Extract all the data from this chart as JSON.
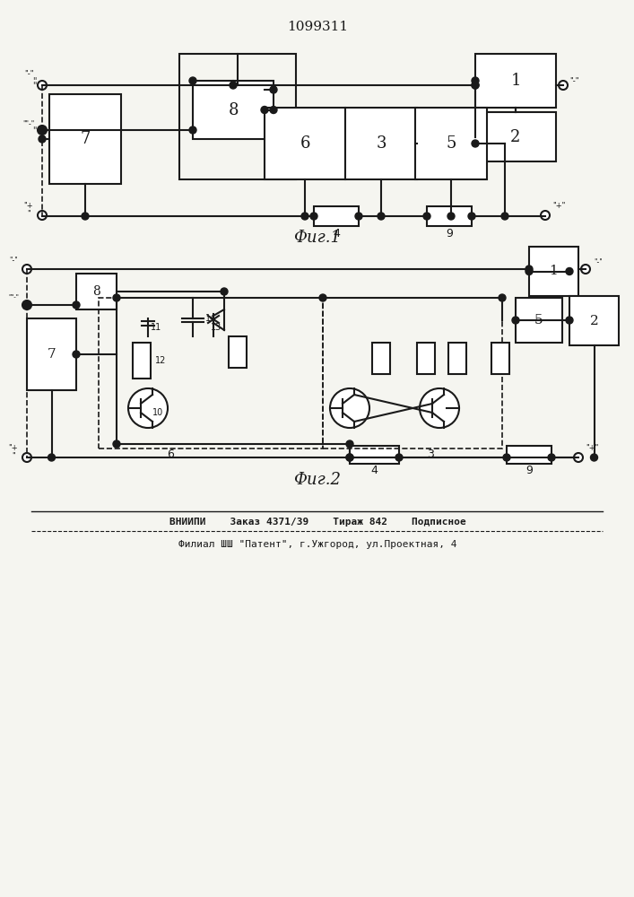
{
  "title": "1099311",
  "fig1_caption": "Фиг.1",
  "fig2_caption": "Фиг.2",
  "footer_line1": "ВНИИПИ    Заказ 4371/39    Тираж 842    Подписное",
  "footer_line2": "Филиал ШШ \"Патент\", г.Ужгород, ул.Проектная, 4",
  "bg_color": "#f5f5f0",
  "line_color": "#1a1a1a",
  "box_color": "#1a1a1a"
}
